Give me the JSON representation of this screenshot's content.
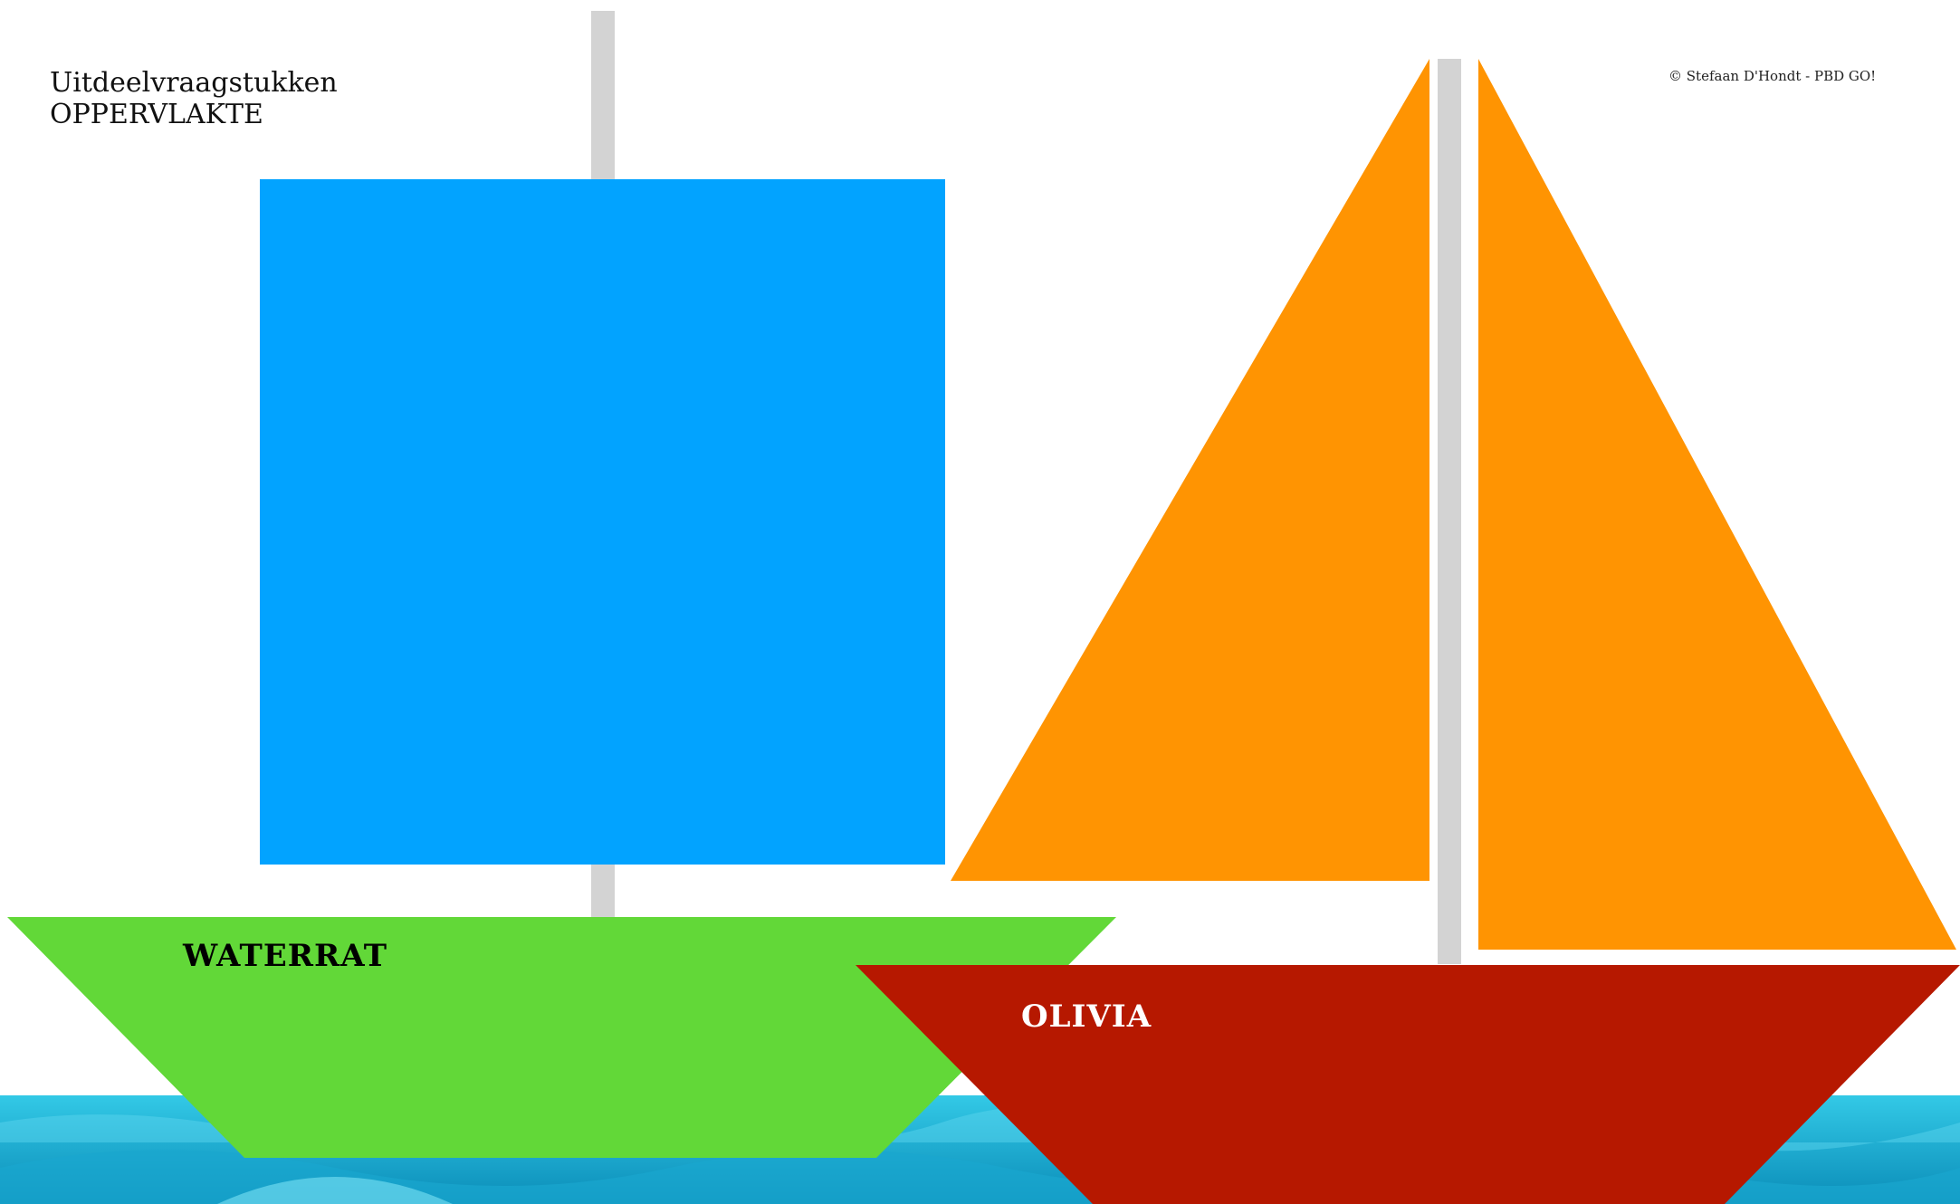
{
  "header": {
    "title_line1": "Uitdeelvraagstukken",
    "title_line2": "OPPERVLAKTE",
    "copyright": "© Stefaan D'Hondt - PBD GO!"
  },
  "boats": {
    "left": {
      "name": "WATERRAT",
      "name_color": "#000000",
      "sail_color": "#02a3ff",
      "hull_color": "#62d838",
      "mast_color": "#d3d3d3"
    },
    "right": {
      "name": "OLIVIA",
      "name_color": "#ffffff",
      "sail_color": "#ff9402",
      "hull_color": "#b61800",
      "mast_color": "#d3d3d3"
    }
  },
  "sea": {
    "color_light": "#33c9e6",
    "color_dark": "#0a8cb8"
  }
}
